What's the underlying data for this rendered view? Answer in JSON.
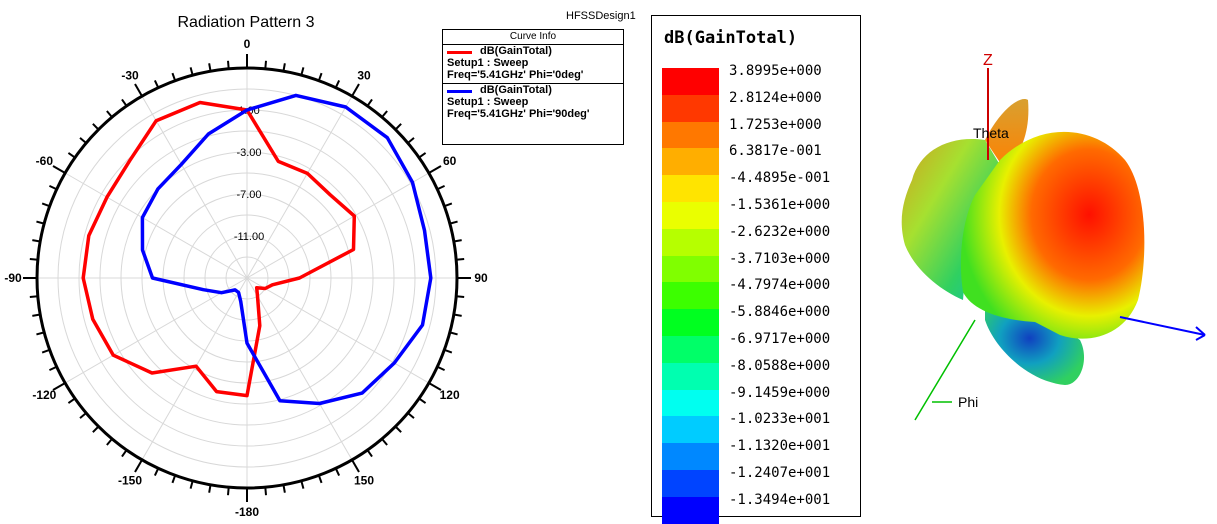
{
  "chart_data": [
    {
      "type": "polar",
      "title": "Radiation Pattern 3",
      "angle_ticks": [
        0,
        30,
        60,
        90,
        120,
        150,
        -180,
        -150,
        -120,
        -90,
        -60,
        -30
      ],
      "angle_tick_labels": [
        "0",
        "30",
        "60",
        "90",
        "120",
        "150",
        "-180",
        "-150",
        "-120",
        "-90",
        "-60",
        "-30"
      ],
      "radial_ticks": [
        1.0,
        -3.0,
        -7.0,
        -11.0
      ],
      "radial_tick_labels": [
        "1.00",
        "-3.00",
        "-7.00",
        "-11.00"
      ],
      "rlim": [
        -15,
        5
      ],
      "grid": true,
      "series": [
        {
          "name": "dB(GainTotal)",
          "color": "#ff0000",
          "theta": [
            0,
            15,
            30,
            45,
            60,
            75,
            90,
            105,
            120,
            135,
            150,
            165,
            180,
            -165,
            -150,
            -135,
            -120,
            -105,
            -90,
            -75,
            -60,
            -45,
            -30,
            -15
          ],
          "r": [
            1.0,
            -3.5,
            -3.5,
            -3.8,
            -3.2,
            -4.5,
            -10.0,
            -12.5,
            -13.0,
            -13.7,
            -13.0,
            -10.3,
            -3.8,
            -3.8,
            -5.3,
            -2.2,
            -0.3,
            0.2,
            0.6,
            0.6,
            0.4,
            0.8,
            2.3,
            2.3
          ]
        },
        {
          "name": "dB(GainTotal)",
          "color": "#0000ff",
          "theta": [
            0,
            15,
            30,
            45,
            60,
            75,
            90,
            105,
            120,
            135,
            150,
            165,
            180,
            -165,
            -150,
            -135,
            -120,
            -105,
            -90,
            -75,
            -60,
            -45,
            -30,
            -15
          ],
          "r": [
            1.0,
            3.0,
            3.8,
            3.9,
            3.2,
            2.5,
            2.5,
            2.3,
            1.2,
            0.5,
            -1.2,
            -2.9,
            -8.8,
            -12.7,
            -13.4,
            -13.4,
            -12.2,
            -10.7,
            -6.0,
            -4.7,
            -3.5,
            -3.0,
            -2.5,
            -0.8
          ]
        }
      ]
    },
    {
      "type": "heatmap",
      "title": "dB(GainTotal)",
      "colors": [
        "#ff0000",
        "#ff3800",
        "#ff7800",
        "#ffae00",
        "#ffe400",
        "#eaff00",
        "#b6ff00",
        "#80ff00",
        "#3cff00",
        "#00ff20",
        "#00ff68",
        "#00ffb0",
        "#00fff0",
        "#00ccff",
        "#0088ff",
        "#0044ff",
        "#0000ff"
      ],
      "tick_labels": [
        "3.8995e+000",
        "2.8124e+000",
        "1.7253e+000",
        "6.3817e-001",
        "-4.4895e-001",
        "-1.5361e+000",
        "-2.6232e+000",
        "-3.7103e+000",
        "-4.7974e+000",
        "-5.8846e+000",
        "-6.9717e+000",
        "-8.0588e+000",
        "-9.1459e+000",
        "-1.0233e+001",
        "-1.1320e+001",
        "-1.2407e+001",
        "-1.3494e+001"
      ]
    }
  ],
  "design_label": "HFSSDesign1",
  "curve_info": {
    "header": "Curve Info",
    "entries": [
      {
        "name": "dB(GainTotal)",
        "line1": "Setup1 : Sweep",
        "line2": "Freq='5.41GHz' Phi='0deg'",
        "color": "#ff0000"
      },
      {
        "name": "dB(GainTotal)",
        "line1": "Setup1 : Sweep",
        "line2": "Freq='5.41GHz' Phi='90deg'",
        "color": "#0000ff"
      }
    ]
  },
  "axes3d": {
    "z": "Z",
    "theta": "Theta",
    "phi": "Phi"
  }
}
